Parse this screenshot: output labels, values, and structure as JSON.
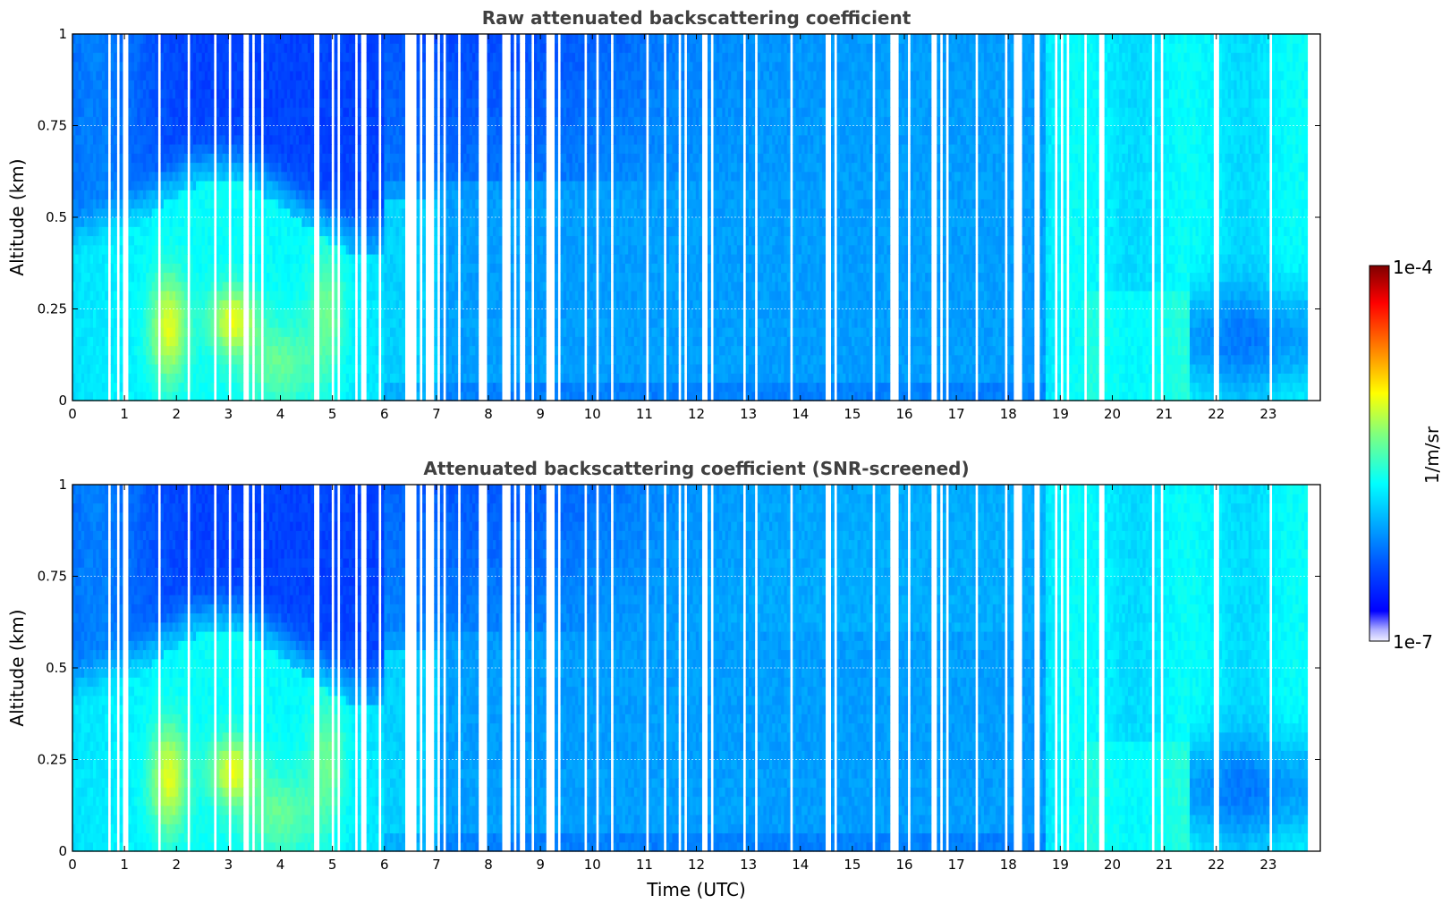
{
  "chart_data": [
    {
      "type": "heatmap",
      "title": "Raw attenuated backscattering coefficient",
      "xlabel": "",
      "ylabel": "Altitude (km)",
      "xlim": [
        0,
        24
      ],
      "ylim": [
        0,
        1
      ],
      "x_ticks": [
        "0",
        "1",
        "2",
        "3",
        "4",
        "5",
        "6",
        "7",
        "8",
        "9",
        "10",
        "11",
        "12",
        "13",
        "14",
        "15",
        "16",
        "17",
        "18",
        "19",
        "20",
        "21",
        "22",
        "23"
      ],
      "y_ticks": [
        "0",
        "0.25",
        "0.5",
        "0.75",
        "1"
      ],
      "grid": true,
      "log_scale_color": true,
      "features": [
        {
          "time": [
            0,
            5.5
          ],
          "altitude": [
            0,
            0.5
          ],
          "level": "moderate (cyan-green)"
        },
        {
          "time": [
            1.5,
            2.2
          ],
          "altitude": [
            0.1,
            0.35
          ],
          "level": "high (yellow-green)"
        },
        {
          "time": [
            2.8,
            3.5
          ],
          "altitude": [
            0.15,
            0.3
          ],
          "level": "high (yellow-green)"
        },
        {
          "time": [
            6,
            18.6
          ],
          "altitude": [
            0.5,
            1
          ],
          "level": "low (deep blue)"
        },
        {
          "time": [
            19,
            24
          ],
          "altitude": [
            0,
            1
          ],
          "level": "moderate (light blue)"
        },
        {
          "time": [
            21.5,
            24
          ],
          "altitude": [
            0.05,
            0.35
          ],
          "level": "low (blue)"
        }
      ]
    },
    {
      "type": "heatmap",
      "title": "Attenuated backscattering coefficient (SNR-screened)",
      "xlabel": "Time (UTC)",
      "ylabel": "Altitude (km)",
      "xlim": [
        0,
        24
      ],
      "ylim": [
        0,
        1
      ],
      "x_ticks": [
        "0",
        "1",
        "2",
        "3",
        "4",
        "5",
        "6",
        "7",
        "8",
        "9",
        "10",
        "11",
        "12",
        "13",
        "14",
        "15",
        "16",
        "17",
        "18",
        "19",
        "20",
        "21",
        "22",
        "23"
      ],
      "y_ticks": [
        "0",
        "0.25",
        "0.5",
        "0.75",
        "1"
      ],
      "grid": true,
      "log_scale_color": true,
      "features": [
        {
          "time": [
            0,
            5.5
          ],
          "altitude": [
            0,
            0.5
          ],
          "level": "moderate (cyan-green)"
        },
        {
          "time": [
            1.5,
            2.2
          ],
          "altitude": [
            0.1,
            0.35
          ],
          "level": "high (yellow-green)"
        },
        {
          "time": [
            2.8,
            3.5
          ],
          "altitude": [
            0.15,
            0.3
          ],
          "level": "high (yellow-green)"
        },
        {
          "time": [
            6,
            18.6
          ],
          "altitude": [
            0.5,
            1
          ],
          "level": "low (deep blue)"
        },
        {
          "time": [
            19,
            24
          ],
          "altitude": [
            0,
            1
          ],
          "level": "moderate (light blue)"
        },
        {
          "time": [
            21.5,
            24
          ],
          "altitude": [
            0.05,
            0.35
          ],
          "level": "low (blue)"
        }
      ]
    }
  ],
  "colorbar": {
    "label": "1/m/sr",
    "max_label": "1e-4",
    "min_label": "1e-7",
    "colormap": "jet",
    "colors": [
      "#00007f",
      "#0000ff",
      "#007fff",
      "#00ffff",
      "#7fff7f",
      "#ffff00",
      "#ff7f00",
      "#ff0000",
      "#7f0000"
    ]
  }
}
